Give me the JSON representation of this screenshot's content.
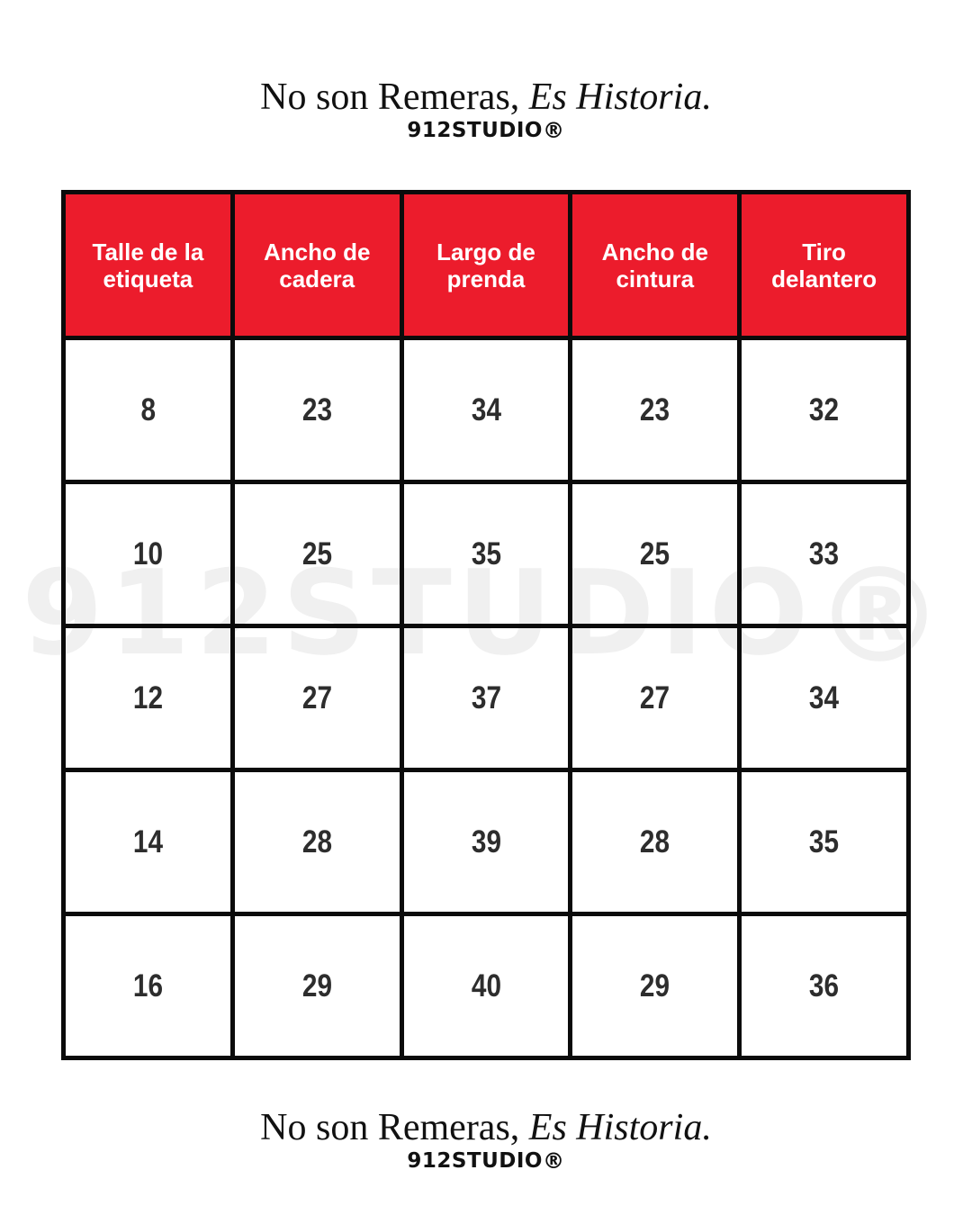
{
  "colors": {
    "header-red": "#EC1C2C",
    "border-black": "#0B0B0B",
    "cell-text": "#2D2D2D",
    "watermark-gray": "#F0F0F0",
    "title-black": "#111111",
    "header-text": "#FFFFFF",
    "bg-white": "#FFFFFF"
  },
  "brand": {
    "tagline_regular": "No son Remeras, ",
    "tagline_italic": "Es Historia.",
    "logo_name": "912STUDIO",
    "logo_reg": "®"
  },
  "watermark": {
    "name": "912STUDIO",
    "reg": "®"
  },
  "chart_data": {
    "type": "table",
    "title": "No son Remeras, Es Historia.",
    "subtitle": "912STUDIO®",
    "columns": [
      "Talle de la etiqueta",
      "Ancho de cadera",
      "Largo de prenda",
      "Ancho de cintura",
      "Tiro delantero"
    ],
    "rows": [
      [
        "8",
        "23",
        "34",
        "23",
        "32"
      ],
      [
        "10",
        "25",
        "35",
        "25",
        "33"
      ],
      [
        "12",
        "27",
        "37",
        "27",
        "34"
      ],
      [
        "14",
        "28",
        "39",
        "28",
        "35"
      ],
      [
        "16",
        "29",
        "40",
        "29",
        "36"
      ]
    ],
    "layout": {
      "header_background": "#EC1C2C",
      "grid": "solid-black-5px",
      "cell_background": "transparent",
      "watermark_behind_table": true
    }
  }
}
